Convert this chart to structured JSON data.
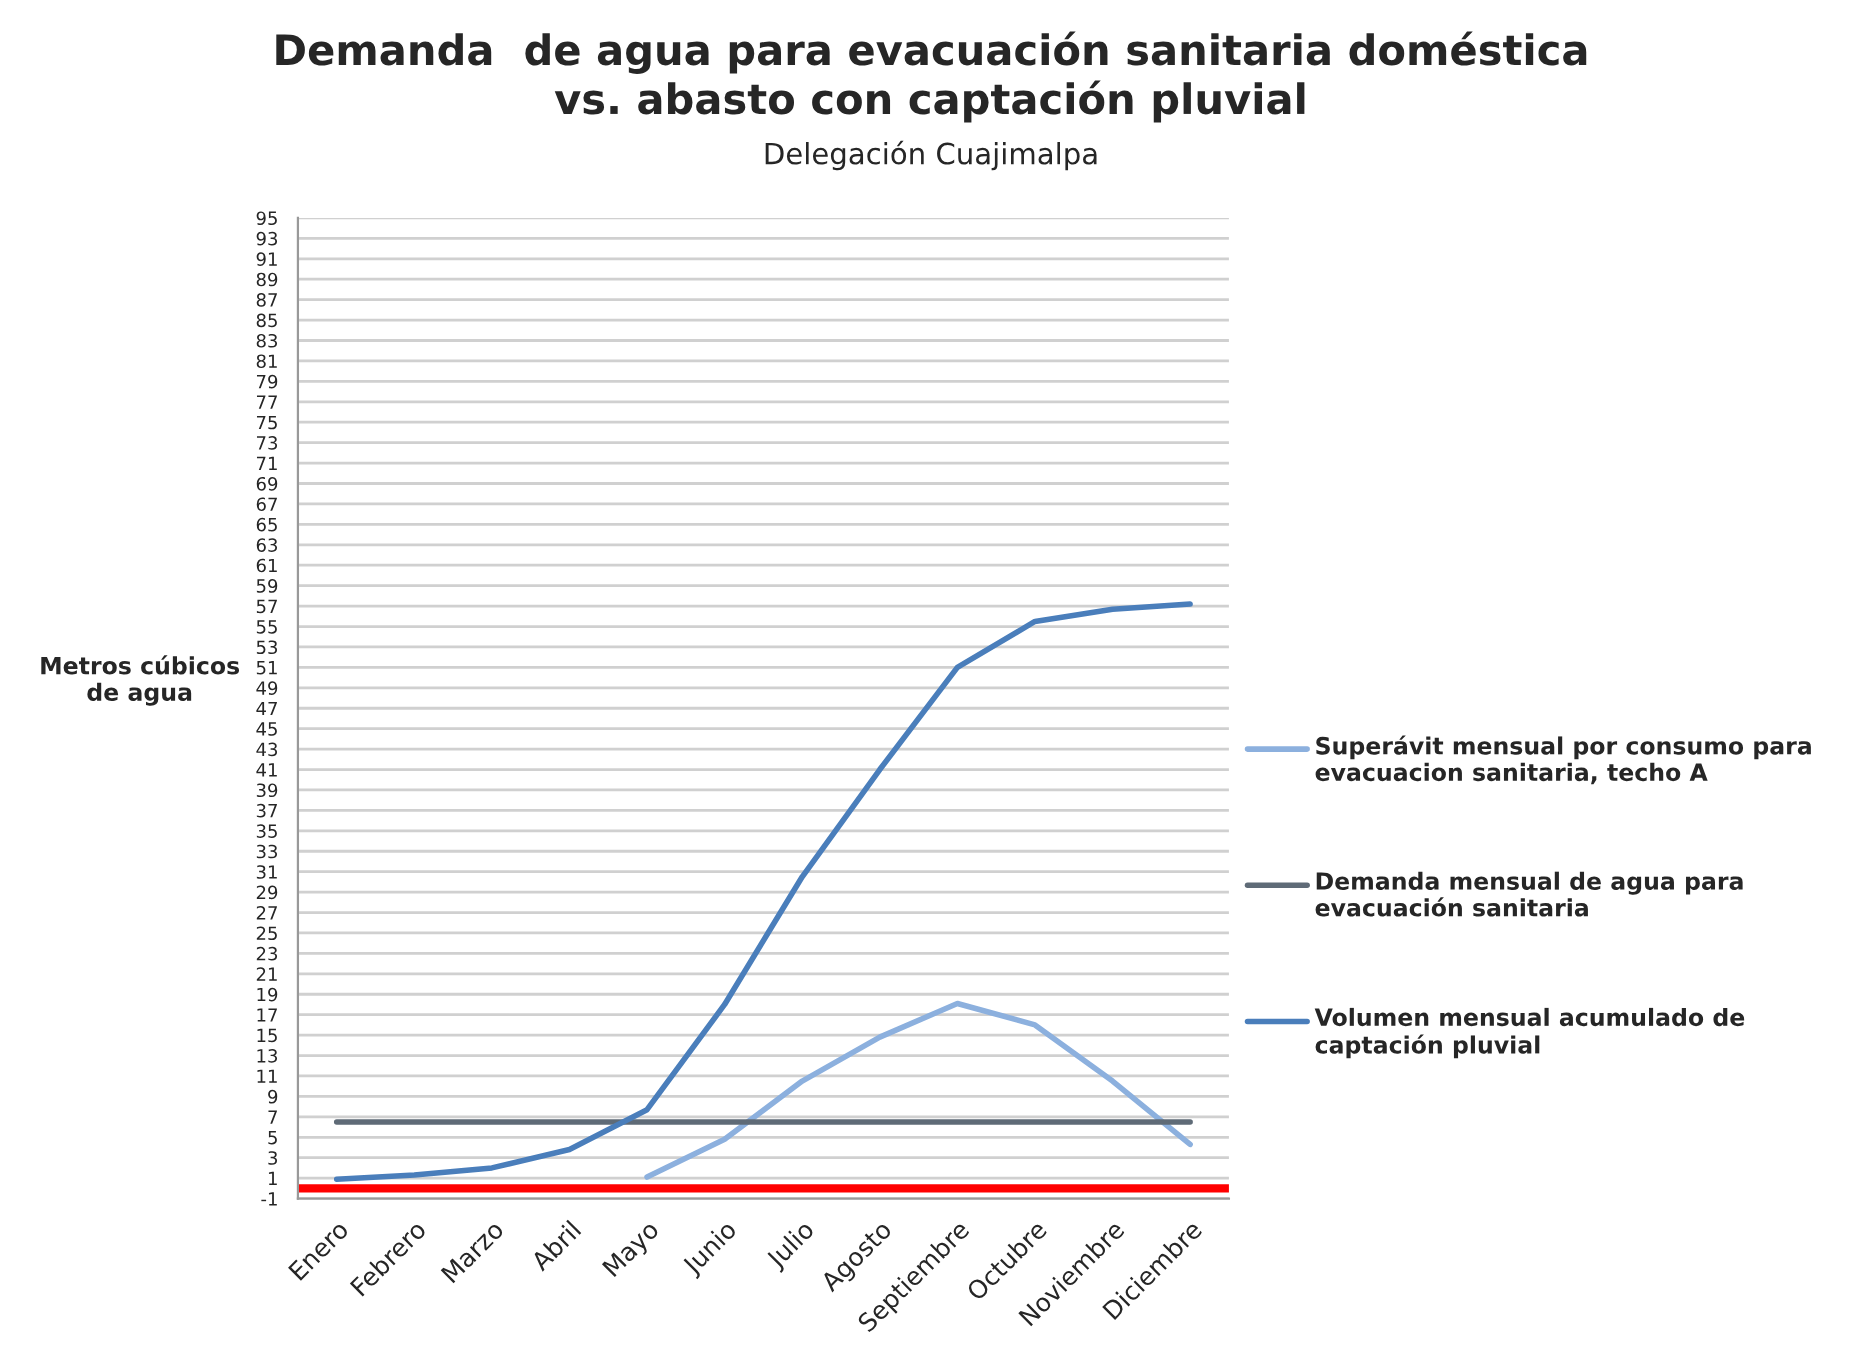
{
  "chart_data": {
    "type": "line",
    "title": "Demanda  de agua para evacuación sanitaria doméstica\nvs. abasto con captación pluvial",
    "subtitle": "Delegación Cuajimalpa",
    "ylabel": "Metros cúbicos\nde agua",
    "categories": [
      "Enero",
      "Febrero",
      "Marzo",
      "Abril",
      "Mayo",
      "Junio",
      "Julio",
      "Agosto",
      "Septiembre",
      "Octubre",
      "Noviembre",
      "Diciembre"
    ],
    "series": [
      {
        "name": "Superávit mensual por consumo para evacuacion sanitaria, techo A",
        "color": "#8cb0de",
        "values": [
          null,
          null,
          null,
          null,
          1.1,
          4.8,
          10.5,
          14.8,
          18.1,
          16,
          10.5,
          4.3
        ]
      },
      {
        "name": "Demanda mensual de agua para evacuación sanitaria",
        "color": "#5f6b77",
        "values": [
          6.5,
          6.5,
          6.5,
          6.5,
          6.5,
          6.5,
          6.5,
          6.5,
          6.5,
          6.5,
          6.5,
          6.5
        ]
      },
      {
        "name": "Volumen mensual acumulado de captación pluvial",
        "color": "#4a7ebb",
        "values": [
          0.9,
          1.3,
          2,
          3.8,
          7.7,
          18,
          30.5,
          41,
          51,
          55.5,
          56.7,
          57.2
        ]
      }
    ],
    "ylim": [
      -1,
      95
    ],
    "yticks": [
      -1,
      1,
      3,
      5,
      7,
      9,
      11,
      13,
      15,
      17,
      19,
      21,
      23,
      25,
      27,
      29,
      31,
      33,
      35,
      37,
      39,
      41,
      43,
      45,
      47,
      49,
      51,
      53,
      55,
      57,
      59,
      61,
      63,
      65,
      67,
      69,
      71,
      73,
      75,
      77,
      79,
      81,
      83,
      85,
      87,
      89,
      91,
      93,
      95
    ],
    "ref_lines": [
      {
        "axis": "y",
        "value": 0,
        "color": "#ff0000"
      }
    ],
    "grid": "y",
    "legend": "right",
    "marker": "none",
    "line_style": "solid"
  }
}
